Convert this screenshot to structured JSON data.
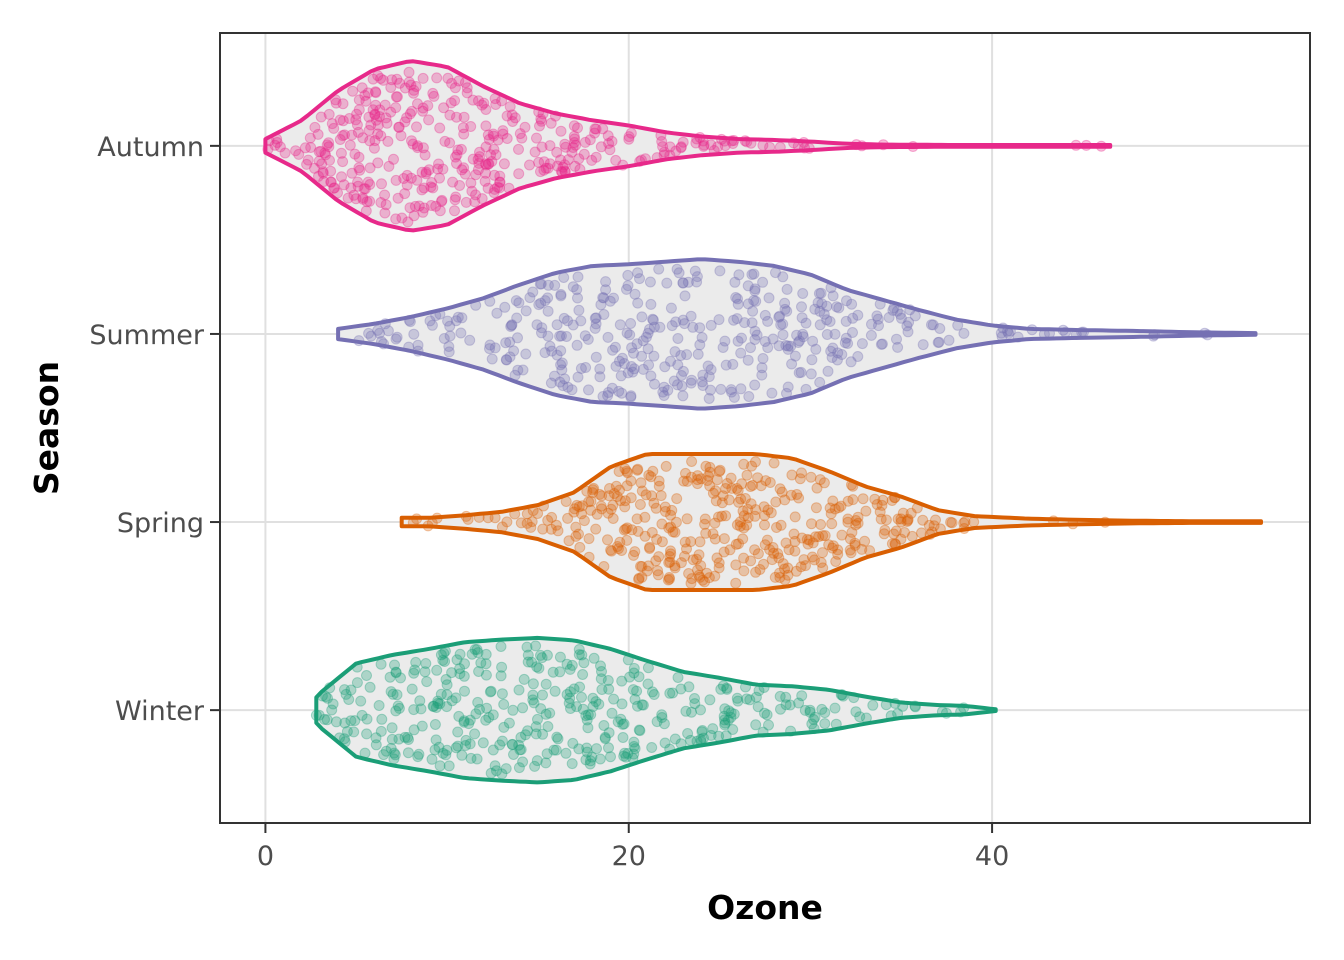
{
  "chart_data": {
    "type": "violin",
    "title": "",
    "xlabel": "Ozone",
    "ylabel": "Season",
    "xlim": [
      -2.5,
      57.5
    ],
    "x_ticks": [
      0,
      20,
      40
    ],
    "categories": [
      "Winter",
      "Spring",
      "Summer",
      "Autumn"
    ],
    "grid": true,
    "legend": "none",
    "colors": {
      "Autumn": "#e7298a",
      "Summer": "#7570b3",
      "Spring": "#d95f02",
      "Winter": "#1b9e77",
      "violin_fill": "#ebebeb",
      "grid": "#e0e0e0",
      "frame": "#333333"
    },
    "series": [
      {
        "category": "Autumn",
        "min": 0,
        "max": 46.5,
        "points": 400,
        "density": [
          [
            0,
            0.08
          ],
          [
            2,
            0.3
          ],
          [
            4,
            0.65
          ],
          [
            6,
            0.9
          ],
          [
            8,
            1.0
          ],
          [
            10,
            0.93
          ],
          [
            12,
            0.7
          ],
          [
            14,
            0.5
          ],
          [
            16,
            0.38
          ],
          [
            18,
            0.3
          ],
          [
            20,
            0.24
          ],
          [
            22,
            0.16
          ],
          [
            24,
            0.11
          ],
          [
            26,
            0.08
          ],
          [
            28,
            0.07
          ],
          [
            30,
            0.05
          ],
          [
            32,
            0.025
          ],
          [
            34,
            0.015
          ],
          [
            38,
            0.01
          ],
          [
            42,
            0.01
          ],
          [
            46.5,
            0.01
          ]
        ]
      },
      {
        "category": "Summer",
        "min": 4,
        "max": 54.5,
        "points": 400,
        "density": [
          [
            4,
            0.06
          ],
          [
            6,
            0.12
          ],
          [
            8,
            0.2
          ],
          [
            10,
            0.3
          ],
          [
            12,
            0.42
          ],
          [
            14,
            0.58
          ],
          [
            16,
            0.72
          ],
          [
            18,
            0.8
          ],
          [
            20,
            0.82
          ],
          [
            22,
            0.85
          ],
          [
            24,
            0.88
          ],
          [
            26,
            0.85
          ],
          [
            28,
            0.8
          ],
          [
            30,
            0.7
          ],
          [
            32,
            0.52
          ],
          [
            34,
            0.4
          ],
          [
            36,
            0.28
          ],
          [
            38,
            0.17
          ],
          [
            40,
            0.1
          ],
          [
            42,
            0.06
          ],
          [
            45,
            0.045
          ],
          [
            48,
            0.035
          ],
          [
            51,
            0.02
          ],
          [
            54.5,
            0.01
          ]
        ]
      },
      {
        "category": "Spring",
        "min": 7.5,
        "max": 54.8,
        "points": 400,
        "density": [
          [
            7.5,
            0.05
          ],
          [
            9,
            0.05
          ],
          [
            11,
            0.08
          ],
          [
            13,
            0.12
          ],
          [
            15,
            0.2
          ],
          [
            17,
            0.35
          ],
          [
            19,
            0.65
          ],
          [
            21,
            0.8
          ],
          [
            23,
            0.8
          ],
          [
            25,
            0.8
          ],
          [
            27,
            0.8
          ],
          [
            29,
            0.75
          ],
          [
            31,
            0.6
          ],
          [
            33,
            0.42
          ],
          [
            35,
            0.3
          ],
          [
            37,
            0.14
          ],
          [
            39,
            0.07
          ],
          [
            42,
            0.04
          ],
          [
            45,
            0.025
          ],
          [
            48,
            0.015
          ],
          [
            51,
            0.01
          ],
          [
            54.8,
            0.01
          ]
        ]
      },
      {
        "category": "Winter",
        "min": 2.8,
        "max": 40.2,
        "points": 400,
        "density": [
          [
            2.8,
            0.15
          ],
          [
            3,
            0.2
          ],
          [
            5,
            0.55
          ],
          [
            7,
            0.65
          ],
          [
            9,
            0.72
          ],
          [
            11,
            0.8
          ],
          [
            13,
            0.83
          ],
          [
            15,
            0.85
          ],
          [
            17,
            0.82
          ],
          [
            19,
            0.72
          ],
          [
            21,
            0.58
          ],
          [
            23,
            0.45
          ],
          [
            25,
            0.38
          ],
          [
            27,
            0.3
          ],
          [
            29,
            0.28
          ],
          [
            31,
            0.24
          ],
          [
            33,
            0.16
          ],
          [
            35,
            0.09
          ],
          [
            37,
            0.06
          ],
          [
            38.5,
            0.05
          ],
          [
            40.2,
            0.01
          ]
        ]
      }
    ]
  }
}
